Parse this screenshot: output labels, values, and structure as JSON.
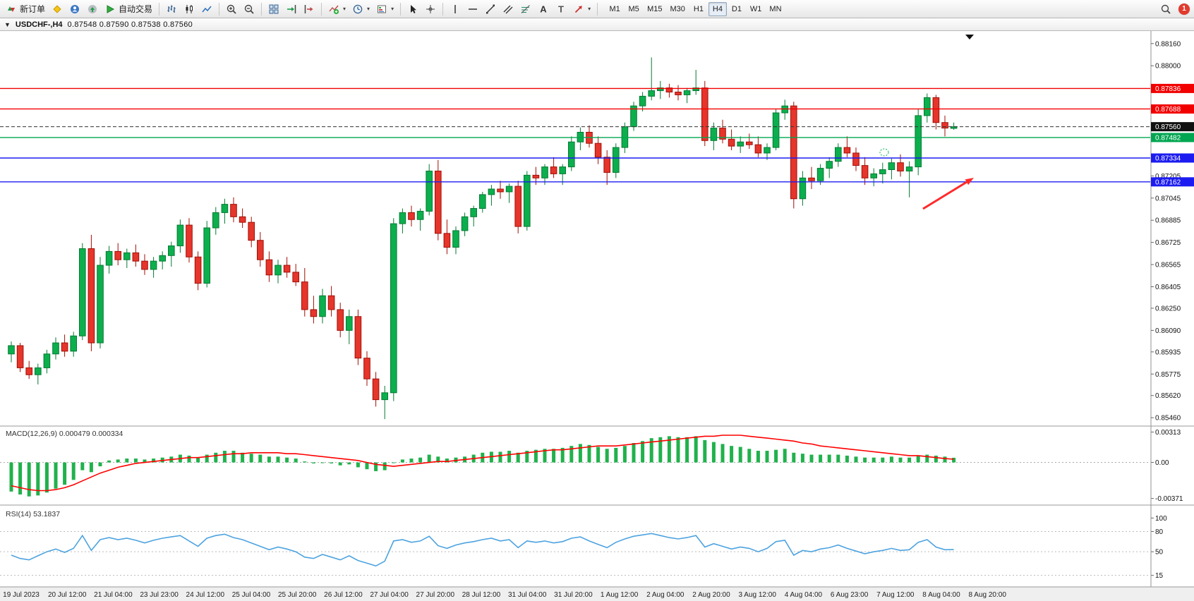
{
  "toolbar": {
    "buttons": [
      {
        "name": "new-order-button",
        "icon": "new-order",
        "label": "新订单"
      },
      {
        "name": "metaeditor-button",
        "icon": "metaeditor"
      },
      {
        "name": "mql5-community-button",
        "icon": "community"
      },
      {
        "name": "market-button",
        "icon": "market"
      },
      {
        "name": "autotrading-button",
        "icon": "autotrading",
        "label": "自动交易"
      },
      {
        "sep": true
      },
      {
        "name": "bar-chart-button",
        "icon": "chart-bars"
      },
      {
        "name": "candlestick-chart-button",
        "icon": "chart-candles"
      },
      {
        "name": "line-chart-button",
        "icon": "chart-line"
      },
      {
        "sep": true
      },
      {
        "name": "zoom-in-button",
        "icon": "zoom-in"
      },
      {
        "name": "zoom-out-button",
        "icon": "zoom-out"
      },
      {
        "sep": true
      },
      {
        "name": "tile-windows-button",
        "icon": "tile-windows"
      },
      {
        "name": "auto-scroll-button",
        "icon": "auto-scroll"
      },
      {
        "name": "chart-shift-button",
        "icon": "chart-shift"
      },
      {
        "sep": true
      },
      {
        "name": "indicators-button",
        "icon": "indicators",
        "caret": true
      },
      {
        "name": "periods-button",
        "icon": "periods",
        "caret": true
      },
      {
        "name": "templates-button",
        "icon": "templates",
        "caret": true
      },
      {
        "sep": true
      },
      {
        "name": "cursor-button",
        "icon": "cursor"
      },
      {
        "name": "crosshair-button",
        "icon": "crosshair"
      },
      {
        "sep": true
      },
      {
        "name": "vertical-line-button",
        "icon": "vline"
      },
      {
        "name": "horizontal-line-button",
        "icon": "hline"
      },
      {
        "name": "trendline-button",
        "icon": "trendline"
      },
      {
        "name": "equidistant-channel-button",
        "icon": "channel"
      },
      {
        "name": "fibonacci-button",
        "icon": "fibonacci"
      },
      {
        "name": "text-button",
        "icon": "text-a"
      },
      {
        "name": "text-label-button",
        "icon": "text-label"
      },
      {
        "name": "arrows-button",
        "icon": "arrows",
        "caret": true
      },
      {
        "sep": true
      }
    ],
    "timeframes": [
      "M1",
      "M5",
      "M15",
      "M30",
      "H1",
      "H4",
      "D1",
      "W1",
      "MN"
    ],
    "active_timeframe": "H4",
    "notification_count": "1"
  },
  "chart_window": {
    "collapse_icon": "▼",
    "title": "USDCHF-,H4",
    "ohlc_line": "0.87548 0.87590 0.87538 0.87560"
  },
  "chart_data": {
    "type": "candlestick",
    "symbol": "USDCHF-",
    "timeframe": "H4",
    "title": "USDCHF-,H4",
    "last_ohlc": {
      "open": "0.87548",
      "high": "0.87590",
      "low": "0.87538",
      "close": "0.87560"
    },
    "ylim": [
      0.8542,
      0.8823
    ],
    "price_axis_ticks": [
      "0.88160",
      "0.88000",
      "0.87205",
      "0.87045",
      "0.86885",
      "0.86725",
      "0.86565",
      "0.86405",
      "0.86250",
      "0.86090",
      "0.85935",
      "0.85775",
      "0.85620",
      "0.85460"
    ],
    "current_price": {
      "value": 0.8756,
      "label": "0.87560",
      "color": "#111111"
    },
    "hlines": [
      {
        "name": "resistance-line-1",
        "price": 0.87836,
        "label": "0.87836",
        "color": "#f20000",
        "style": "solid"
      },
      {
        "name": "resistance-line-2",
        "price": 0.87688,
        "label": "0.87688",
        "color": "#f20000",
        "style": "solid"
      },
      {
        "name": "pivot-line-green",
        "price": 0.87482,
        "label": "0.87482",
        "color": "#00a651",
        "style": "solid"
      },
      {
        "name": "support-line-1",
        "price": 0.87334,
        "label": "0.87334",
        "color": "#1c1cf0",
        "style": "solid"
      },
      {
        "name": "support-line-2",
        "price": 0.87162,
        "label": "0.87162",
        "color": "#1c1cf0",
        "style": "solid"
      }
    ],
    "colors": {
      "up_fill": "#0caf4d",
      "up_stroke": "#067a33",
      "down_fill": "#e6352b",
      "down_stroke": "#a00f06",
      "macd_hist": "#21b14c",
      "macd_signal": "#ff0000",
      "rsi_line": "#4da3e0",
      "annotation_arrow": "#ff2a2a",
      "entry_marker": "#0caf4d"
    },
    "candles": [
      [
        0.8592,
        0.8601,
        0.8586,
        0.8598
      ],
      [
        0.8598,
        0.86,
        0.8579,
        0.8582
      ],
      [
        0.8582,
        0.8587,
        0.8574,
        0.8577
      ],
      [
        0.8577,
        0.8585,
        0.857,
        0.8582
      ],
      [
        0.8582,
        0.8595,
        0.8578,
        0.8592
      ],
      [
        0.8592,
        0.8604,
        0.8588,
        0.86
      ],
      [
        0.86,
        0.8606,
        0.859,
        0.8594
      ],
      [
        0.8594,
        0.8608,
        0.859,
        0.8605
      ],
      [
        0.8605,
        0.8672,
        0.8602,
        0.8668
      ],
      [
        0.8668,
        0.8678,
        0.8594,
        0.86
      ],
      [
        0.86,
        0.8662,
        0.8596,
        0.8656
      ],
      [
        0.8656,
        0.867,
        0.865,
        0.8666
      ],
      [
        0.8666,
        0.8672,
        0.8656,
        0.866
      ],
      [
        0.866,
        0.8668,
        0.8654,
        0.8665
      ],
      [
        0.8665,
        0.8671,
        0.8655,
        0.8659
      ],
      [
        0.8659,
        0.8664,
        0.8649,
        0.8653
      ],
      [
        0.8653,
        0.8662,
        0.8647,
        0.8659
      ],
      [
        0.8659,
        0.8666,
        0.8653,
        0.8663
      ],
      [
        0.8663,
        0.8673,
        0.8655,
        0.867
      ],
      [
        0.867,
        0.8689,
        0.8665,
        0.8685
      ],
      [
        0.8685,
        0.869,
        0.8658,
        0.8662
      ],
      [
        0.8662,
        0.8666,
        0.8638,
        0.8643
      ],
      [
        0.8643,
        0.8688,
        0.864,
        0.8683
      ],
      [
        0.8683,
        0.8698,
        0.8678,
        0.8694
      ],
      [
        0.8694,
        0.8704,
        0.8686,
        0.87
      ],
      [
        0.87,
        0.8705,
        0.8687,
        0.8691
      ],
      [
        0.8691,
        0.8697,
        0.8683,
        0.8687
      ],
      [
        0.8687,
        0.8691,
        0.8669,
        0.8674
      ],
      [
        0.8674,
        0.868,
        0.8655,
        0.866
      ],
      [
        0.866,
        0.8666,
        0.8644,
        0.8649
      ],
      [
        0.8649,
        0.866,
        0.8643,
        0.8656
      ],
      [
        0.8656,
        0.8662,
        0.8647,
        0.8651
      ],
      [
        0.8651,
        0.8657,
        0.8641,
        0.8644
      ],
      [
        0.8644,
        0.8654,
        0.8619,
        0.8624
      ],
      [
        0.8624,
        0.8634,
        0.8614,
        0.8619
      ],
      [
        0.8619,
        0.8639,
        0.8614,
        0.8634
      ],
      [
        0.8634,
        0.8641,
        0.8619,
        0.8624
      ],
      [
        0.8624,
        0.8629,
        0.8604,
        0.8609
      ],
      [
        0.8609,
        0.8624,
        0.8599,
        0.8619
      ],
      [
        0.8619,
        0.8624,
        0.8584,
        0.8589
      ],
      [
        0.8589,
        0.8594,
        0.8569,
        0.8574
      ],
      [
        0.8574,
        0.8579,
        0.8554,
        0.8559
      ],
      [
        0.8559,
        0.8569,
        0.8545,
        0.8564
      ],
      [
        0.8564,
        0.869,
        0.8558,
        0.8686
      ],
      [
        0.8686,
        0.8697,
        0.8679,
        0.8694
      ],
      [
        0.8694,
        0.8699,
        0.8684,
        0.8689
      ],
      [
        0.8689,
        0.8697,
        0.8681,
        0.8695
      ],
      [
        0.8695,
        0.8729,
        0.8692,
        0.8724
      ],
      [
        0.8724,
        0.8732,
        0.8674,
        0.8679
      ],
      [
        0.8679,
        0.8689,
        0.8664,
        0.8669
      ],
      [
        0.8669,
        0.8684,
        0.8664,
        0.8681
      ],
      [
        0.8681,
        0.8694,
        0.8677,
        0.8691
      ],
      [
        0.8691,
        0.8699,
        0.8684,
        0.8697
      ],
      [
        0.8697,
        0.8709,
        0.8694,
        0.8707
      ],
      [
        0.8707,
        0.8714,
        0.8699,
        0.8711
      ],
      [
        0.8711,
        0.8717,
        0.8704,
        0.8709
      ],
      [
        0.8709,
        0.8715,
        0.8701,
        0.8713
      ],
      [
        0.8713,
        0.8717,
        0.8679,
        0.8684
      ],
      [
        0.8684,
        0.8724,
        0.8681,
        0.8721
      ],
      [
        0.8721,
        0.8727,
        0.8714,
        0.8719
      ],
      [
        0.8719,
        0.8729,
        0.8714,
        0.8727
      ],
      [
        0.8727,
        0.8734,
        0.8719,
        0.8722
      ],
      [
        0.8722,
        0.8729,
        0.8714,
        0.8727
      ],
      [
        0.8727,
        0.8749,
        0.8724,
        0.8745
      ],
      [
        0.8745,
        0.87555,
        0.8739,
        0.8752
      ],
      [
        0.8752,
        0.8757,
        0.8741,
        0.8744
      ],
      [
        0.8744,
        0.8749,
        0.8729,
        0.8734
      ],
      [
        0.8734,
        0.8739,
        0.8714,
        0.8723
      ],
      [
        0.8723,
        0.8744,
        0.8719,
        0.8741
      ],
      [
        0.8741,
        0.8759,
        0.8737,
        0.8756
      ],
      [
        0.8756,
        0.8774,
        0.8753,
        0.8771
      ],
      [
        0.8771,
        0.8781,
        0.8767,
        0.8778
      ],
      [
        0.8778,
        0.8806,
        0.8775,
        0.8782
      ],
      [
        0.8782,
        0.8789,
        0.8776,
        0.8784
      ],
      [
        0.8784,
        0.8787,
        0.8777,
        0.8781
      ],
      [
        0.8781,
        0.8786,
        0.8775,
        0.8779
      ],
      [
        0.8779,
        0.8784,
        0.8773,
        0.8782
      ],
      [
        0.8782,
        0.8797,
        0.8779,
        0.8784
      ],
      [
        0.8784,
        0.8789,
        0.8742,
        0.8746
      ],
      [
        0.8746,
        0.8759,
        0.8739,
        0.8755
      ],
      [
        0.8755,
        0.8761,
        0.8744,
        0.8747
      ],
      [
        0.8747,
        0.8754,
        0.8739,
        0.8742
      ],
      [
        0.8742,
        0.8749,
        0.8737,
        0.8745
      ],
      [
        0.8745,
        0.8751,
        0.874,
        0.8743
      ],
      [
        0.8743,
        0.8749,
        0.8734,
        0.8737
      ],
      [
        0.8737,
        0.8744,
        0.8732,
        0.8741
      ],
      [
        0.8741,
        0.8769,
        0.8739,
        0.8766
      ],
      [
        0.8766,
        0.87755,
        0.8761,
        0.8771
      ],
      [
        0.8771,
        0.8774,
        0.8697,
        0.8704
      ],
      [
        0.8704,
        0.8724,
        0.8699,
        0.8719
      ],
      [
        0.8719,
        0.8727,
        0.8711,
        0.8717
      ],
      [
        0.8717,
        0.8729,
        0.8714,
        0.8726
      ],
      [
        0.8726,
        0.8734,
        0.8719,
        0.8731
      ],
      [
        0.8731,
        0.8744,
        0.8727,
        0.8741
      ],
      [
        0.8741,
        0.8749,
        0.8734,
        0.8737
      ],
      [
        0.8737,
        0.8741,
        0.8724,
        0.8728
      ],
      [
        0.8728,
        0.8734,
        0.8714,
        0.8719
      ],
      [
        0.8719,
        0.8726,
        0.8713,
        0.8722
      ],
      [
        0.8722,
        0.873,
        0.8715,
        0.8725
      ],
      [
        0.8725,
        0.8733,
        0.8718,
        0.873
      ],
      [
        0.873,
        0.8736,
        0.872,
        0.8724
      ],
      [
        0.8724,
        0.8731,
        0.8705,
        0.8727
      ],
      [
        0.8727,
        0.8769,
        0.8721,
        0.8764
      ],
      [
        0.8764,
        0.878,
        0.8759,
        0.8777
      ],
      [
        0.8777,
        0.8779,
        0.8754,
        0.8759
      ],
      [
        0.8759,
        0.8764,
        0.8749,
        0.8755
      ],
      [
        0.87548,
        0.8759,
        0.87538,
        0.8756
      ]
    ],
    "time_labels": [
      "19 Jul 2023",
      "20 Jul 12:00",
      "21 Jul 04:00",
      "23 Jul 23:00",
      "24 Jul 12:00",
      "25 Jul 04:00",
      "25 Jul 20:00",
      "26 Jul 12:00",
      "27 Jul 04:00",
      "27 Jul 20:00",
      "28 Jul 12:00",
      "31 Jul 04:00",
      "31 Jul 20:00",
      "1 Aug 12:00",
      "2 Aug 04:00",
      "2 Aug 20:00",
      "3 Aug 12:00",
      "4 Aug 04:00",
      "6 Aug 23:00",
      "7 Aug 12:00",
      "8 Aug 04:00",
      "8 Aug 20:00"
    ],
    "indicators": {
      "macd": {
        "label": "MACD(12,26,9)",
        "values_label": "0.000479 0.000334",
        "axis_labels": [
          "0.00313",
          "0.00",
          "-0.00371"
        ],
        "ylim": [
          -0.0041,
          0.0036
        ],
        "scale": 0.0001,
        "hist": [
          -30,
          -33,
          -35,
          -34,
          -31,
          -27,
          -23,
          -18,
          -8,
          -10,
          -4,
          2,
          3,
          4,
          4,
          3,
          4,
          5,
          6,
          8,
          7,
          5,
          8,
          10,
          12,
          12,
          10,
          9,
          8,
          6,
          6,
          5,
          4,
          1,
          -1,
          0,
          -1,
          -3,
          -2,
          -5,
          -7,
          -9,
          -8,
          0,
          3,
          4,
          5,
          8,
          6,
          4,
          5,
          6,
          8,
          10,
          11,
          11,
          12,
          10,
          12,
          13,
          14,
          14,
          15,
          17,
          19,
          18,
          16,
          14,
          15,
          17,
          20,
          22,
          25,
          26,
          27,
          26,
          26,
          27,
          23,
          21,
          19,
          17,
          16,
          14,
          12,
          12,
          13,
          14,
          10,
          9,
          8,
          8,
          8,
          8,
          7,
          6,
          5,
          5,
          5,
          6,
          5,
          5,
          7,
          8,
          7,
          6,
          4.8
        ],
        "signal": [
          -24,
          -26,
          -28,
          -29,
          -29,
          -28,
          -26,
          -23,
          -19,
          -15,
          -11,
          -8,
          -5,
          -3,
          -1,
          0,
          1,
          2,
          3,
          4,
          5,
          5,
          6,
          7,
          8,
          9,
          9,
          10,
          10,
          10,
          10,
          9,
          9,
          8,
          7,
          6,
          5,
          4,
          3,
          2,
          0,
          -2,
          -3,
          -4,
          -3,
          -2,
          -1,
          0,
          1,
          1,
          2,
          3,
          4,
          5,
          6,
          7,
          8,
          9,
          10,
          11,
          12,
          13,
          13,
          14,
          15,
          16,
          17,
          17,
          17,
          18,
          19,
          20,
          21,
          22,
          23,
          24,
          25,
          26,
          27,
          27,
          28,
          28,
          28,
          27,
          26,
          25,
          24,
          23,
          22,
          20,
          19,
          17,
          16,
          15,
          14,
          13,
          12,
          11,
          10,
          9,
          8,
          7,
          7,
          6,
          5,
          4,
          3.34
        ]
      },
      "rsi": {
        "label": "RSI(14)",
        "value_label": "53.1837",
        "axis_labels": [
          "100",
          "80",
          "50",
          "15"
        ],
        "levels": [
          80,
          50,
          15
        ],
        "ylim": [
          0,
          115
        ],
        "values": [
          45,
          40,
          38,
          44,
          50,
          54,
          49,
          55,
          74,
          52,
          68,
          71,
          68,
          70,
          67,
          63,
          67,
          70,
          72,
          74,
          66,
          58,
          70,
          74,
          76,
          71,
          68,
          63,
          58,
          53,
          57,
          54,
          50,
          42,
          40,
          46,
          42,
          38,
          44,
          37,
          33,
          29,
          36,
          66,
          68,
          64,
          66,
          73,
          59,
          55,
          60,
          63,
          65,
          68,
          70,
          66,
          68,
          56,
          66,
          64,
          66,
          63,
          65,
          70,
          72,
          66,
          61,
          56,
          64,
          69,
          73,
          75,
          77,
          74,
          71,
          69,
          71,
          74,
          57,
          62,
          58,
          54,
          57,
          55,
          50,
          55,
          65,
          67,
          45,
          52,
          50,
          54,
          56,
          60,
          55,
          51,
          47,
          50,
          52,
          55,
          52,
          53,
          64,
          68,
          57,
          53,
          53.18
        ]
      }
    }
  }
}
